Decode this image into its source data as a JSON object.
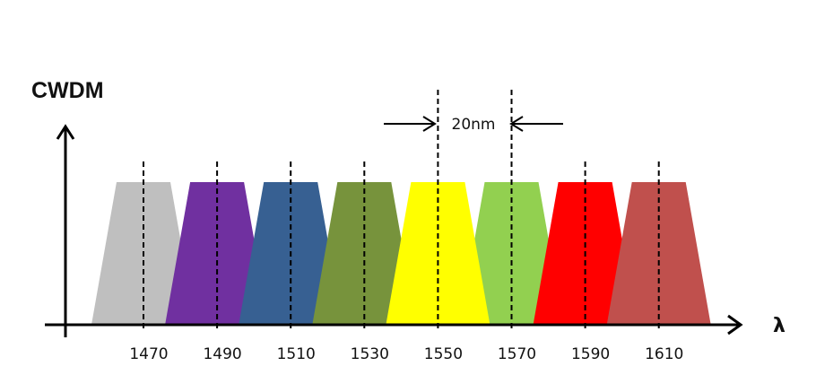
{
  "title": "CWDM",
  "axis_x_label": "λ",
  "spacing_label": "20nm",
  "channels": [
    {
      "wavelength": "1470",
      "color": "#bfbfbf"
    },
    {
      "wavelength": "1490",
      "color": "#7030a0"
    },
    {
      "wavelength": "1510",
      "color": "#376092"
    },
    {
      "wavelength": "1530",
      "color": "#77933c"
    },
    {
      "wavelength": "1550",
      "color": "#ffff00"
    },
    {
      "wavelength": "1570",
      "color": "#92d050"
    },
    {
      "wavelength": "1590",
      "color": "#ff0000"
    },
    {
      "wavelength": "1610",
      "color": "#c0504d"
    }
  ],
  "spacing_between": [
    "1550",
    "1570"
  ]
}
